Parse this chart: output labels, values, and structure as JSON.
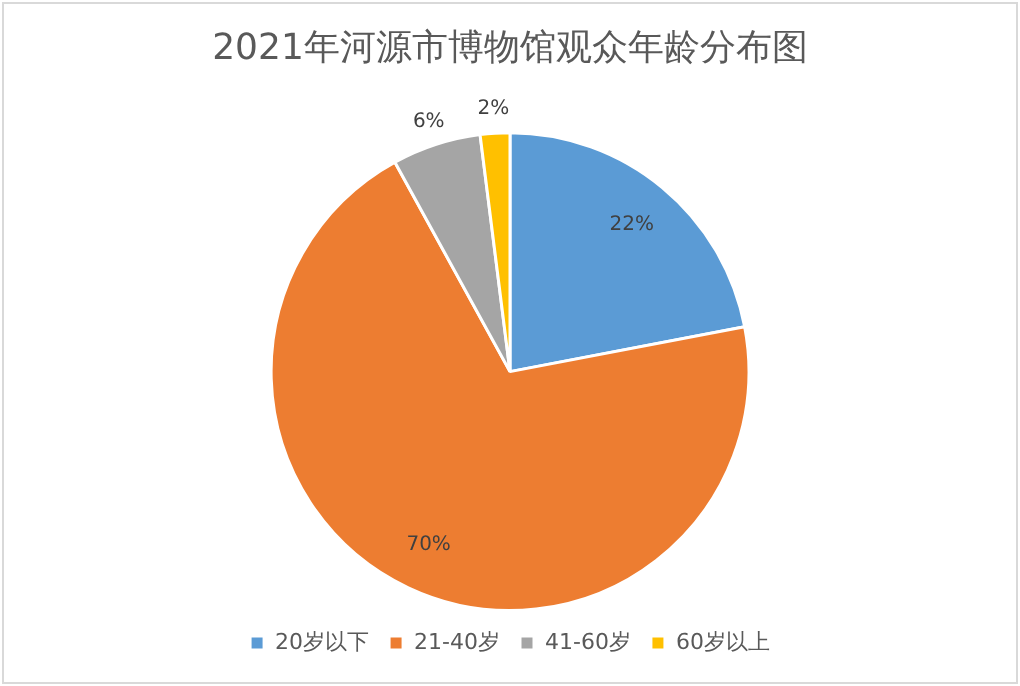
{
  "chart_data": {
    "type": "pie",
    "title": "2021年河源市博物馆观众年龄分布图",
    "categories": [
      "20岁以下",
      "21-40岁",
      "41-60岁",
      "60岁以上"
    ],
    "values": [
      22,
      70,
      6,
      2
    ],
    "colors": [
      "#5b9bd5",
      "#ed7d31",
      "#a5a5a5",
      "#ffc000"
    ],
    "value_labels": [
      "22%",
      "70%",
      "6%",
      "2%"
    ],
    "legend": "bottom"
  }
}
